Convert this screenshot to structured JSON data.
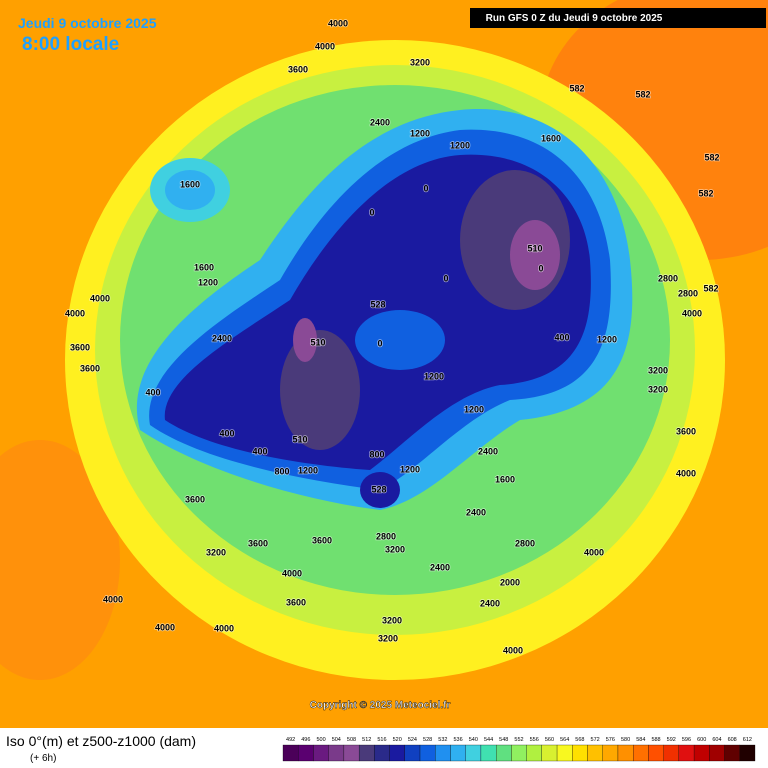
{
  "header": {
    "date": "Jeudi 9 octobre 2025",
    "time": "8:00 locale",
    "run": "Run GFS 0 Z du Jeudi 9 octobre 2025"
  },
  "footer": {
    "copyright": "Copyright © 2025 Meteociel.fr",
    "title": "Iso 0°(m) et z500-z1000 (dam)",
    "lead": "(+ 6h)"
  },
  "legend": {
    "values": [
      492,
      496,
      500,
      504,
      508,
      512,
      516,
      520,
      524,
      528,
      532,
      536,
      540,
      544,
      548,
      552,
      556,
      560,
      564,
      568,
      572,
      576,
      580,
      584,
      588,
      592,
      596,
      600,
      604,
      608,
      612
    ],
    "colors": [
      "#4b0059",
      "#5a0070",
      "#6a1a80",
      "#7a3a8a",
      "#8a4a96",
      "#4a3a7a",
      "#2a2a8a",
      "#1a1aa0",
      "#1040c0",
      "#1060e0",
      "#2090f0",
      "#30b0f0",
      "#40d0e0",
      "#40e0b0",
      "#60e080",
      "#90f060",
      "#b0f040",
      "#d8f030",
      "#f8f820",
      "#ffe000",
      "#ffc000",
      "#ffa800",
      "#ff9000",
      "#ff7000",
      "#ff5000",
      "#f03000",
      "#e01010",
      "#c00000",
      "#a00000",
      "#600000",
      "#200000"
    ]
  },
  "map": {
    "labels": [
      "4000",
      "4000",
      "3600",
      "3200",
      "1600",
      "2800",
      "2800",
      "4000",
      "3200",
      "3200",
      "3600",
      "4000",
      "4000",
      "2400",
      "1600",
      "2400",
      "2800",
      "2000",
      "2400",
      "4000",
      "3200",
      "3200",
      "2800",
      "3200",
      "2400",
      "3600",
      "3600",
      "3200",
      "4000",
      "3600",
      "4000",
      "4000",
      "4000",
      "3600",
      "400",
      "400",
      "400",
      "800",
      "1200",
      "2400",
      "4000",
      "4000",
      "3600",
      "3600",
      "1200",
      "1600",
      "0",
      "0",
      "0",
      "0",
      "0",
      "510",
      "510",
      "510",
      "528",
      "528",
      "400",
      "1200",
      "1200",
      "1200",
      "1600",
      "800",
      "1200",
      "1200",
      "1200",
      "582",
      "582",
      "582",
      "582",
      "582",
      "2400"
    ]
  }
}
